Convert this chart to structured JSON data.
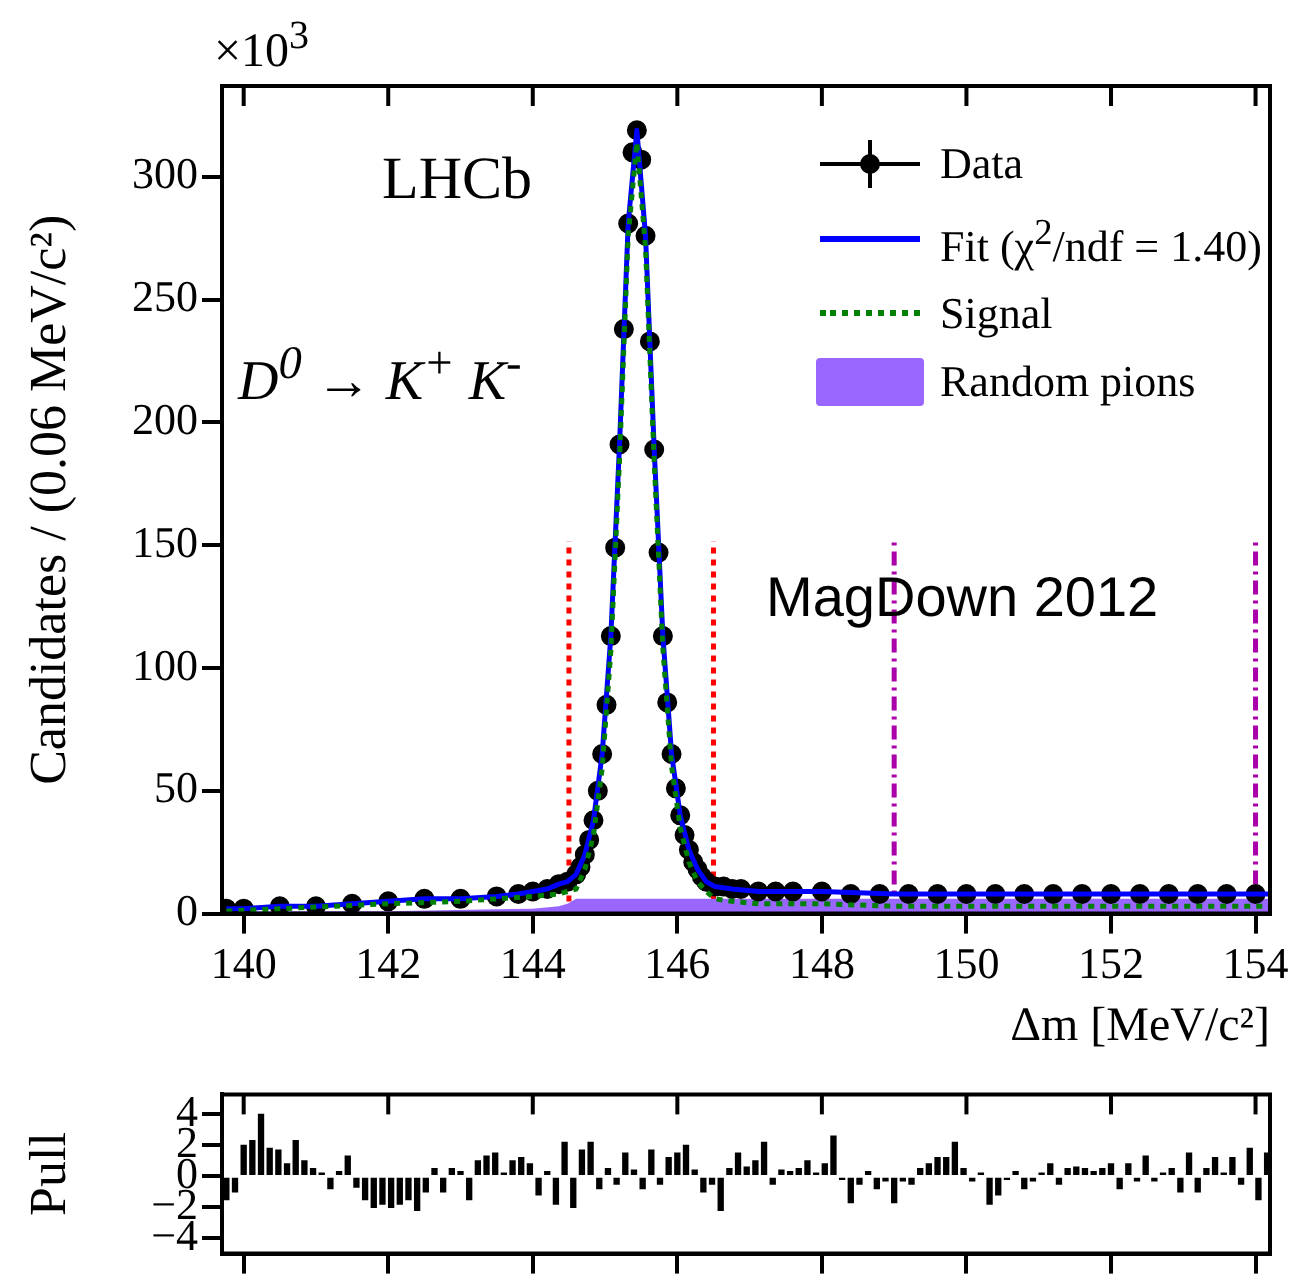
{
  "chart_data": [
    {
      "type": "line",
      "xlabel": "Δm [MeV/c²]",
      "ylabel": "Candidates / (0.06 MeV/c²)",
      "xlim": [
        139.7,
        154.2
      ],
      "xticks": [
        140,
        142,
        144,
        146,
        148,
        150,
        152,
        154
      ],
      "ylim": [
        0,
        337
      ],
      "yticks": [
        0,
        50,
        100,
        150,
        200,
        250,
        300
      ],
      "grid": false,
      "legend": "top right",
      "annotations": [
        "×10$^{3}$",
        "LHCb",
        "D$^{0}$ → K$^{+}$ K$^{-}$",
        "MagDown 2012"
      ],
      "ref_lines": [
        {
          "axis": "x",
          "value": 144.5,
          "color": "#ff0000",
          "line_style": "dotted"
        },
        {
          "axis": "x",
          "value": 146.5,
          "color": "#ff0000",
          "line_style": "dotted"
        },
        {
          "axis": "x",
          "value": 149,
          "color": "#aa00aa",
          "line_style": "dashed"
        },
        {
          "axis": "x",
          "value": 154,
          "color": "#aa00aa",
          "line_style": "dashed"
        }
      ],
      "series": [
        {
          "name": "Random pions",
          "type": "area",
          "color": "#9966ff",
          "x": [
            139.76,
            142,
            144,
            144.36,
            144.48,
            144.6,
            146,
            154.2
          ],
          "values": [
            1,
            1,
            2,
            3,
            4,
            6,
            6,
            6
          ]
        },
        {
          "name": "Data",
          "type": "scatter",
          "marker": "circle",
          "color": "#000000",
          "x": [
            139.76,
            140,
            140.5,
            141,
            141.5,
            142,
            142.5,
            143,
            143.5,
            143.8,
            144,
            144.2,
            144.36,
            144.48,
            144.6,
            144.66,
            144.72,
            144.78,
            144.84,
            144.9,
            144.96,
            145.02,
            145.08,
            145.14,
            145.2,
            145.26,
            145.32,
            145.38,
            145.44,
            145.5,
            145.56,
            145.62,
            145.68,
            145.74,
            145.8,
            145.86,
            145.92,
            145.98,
            146.04,
            146.1,
            146.16,
            146.22,
            146.28,
            146.34,
            146.4,
            146.52,
            146.64,
            146.76,
            146.88,
            147.12,
            147.36,
            147.6,
            148,
            148.4,
            148.8,
            149.2,
            149.6,
            150,
            150.4,
            150.8,
            151.2,
            151.6,
            152,
            152.4,
            152.8,
            153.2,
            153.6,
            154
          ],
          "values": [
            2,
            2,
            3,
            3,
            4,
            5,
            6,
            6,
            7,
            8,
            9,
            10,
            12,
            13,
            16,
            19,
            24,
            30,
            38,
            50,
            65,
            85,
            113,
            149,
            191,
            238,
            281,
            310,
            319,
            307,
            276,
            233,
            189,
            147,
            113,
            86,
            65,
            51,
            40,
            32,
            26,
            21,
            18,
            15,
            13,
            11,
            11,
            10,
            10,
            9,
            9,
            9,
            9,
            8,
            8,
            8,
            8,
            8,
            8,
            8,
            8,
            8,
            8,
            8,
            8,
            8,
            8,
            8
          ]
        },
        {
          "name": "Signal",
          "type": "line",
          "line_style": "dotted",
          "color": "#008000",
          "x": [
            139.76,
            142,
            143,
            144,
            144.36,
            144.48,
            144.6,
            144.72,
            144.84,
            144.96,
            145.08,
            145.2,
            145.32,
            145.44,
            145.56,
            145.68,
            145.8,
            145.92,
            146.04,
            146.16,
            146.28,
            146.4,
            146.52,
            146.76,
            147.12,
            147.6,
            148,
            149,
            150,
            154.2
          ],
          "values": [
            1,
            4,
            5,
            7,
            8,
            9,
            10,
            18,
            32,
            59,
            107,
            185,
            276,
            314,
            271,
            184,
            108,
            60,
            35,
            21,
            13,
            9,
            6,
            5,
            4,
            4,
            4,
            3,
            3,
            3
          ]
        },
        {
          "name": "Fit (χ$^{2}$/ndf = 1.40)",
          "type": "line",
          "line_style": "solid",
          "color": "#0000ff",
          "x": [
            139.76,
            140,
            140.5,
            141,
            141.5,
            142,
            142.5,
            143,
            143.5,
            143.8,
            144,
            144.2,
            144.36,
            144.48,
            144.6,
            144.72,
            144.84,
            144.96,
            145.08,
            145.2,
            145.32,
            145.44,
            145.56,
            145.68,
            145.8,
            145.92,
            146.04,
            146.16,
            146.28,
            146.4,
            146.52,
            146.76,
            147.12,
            147.6,
            148,
            149,
            150,
            152,
            154.2
          ],
          "values": [
            2,
            2,
            3,
            3,
            4,
            5,
            6,
            6,
            7,
            8,
            9,
            10,
            12,
            13,
            16,
            24,
            38,
            65,
            113,
            191,
            281,
            319,
            276,
            189,
            113,
            65,
            40,
            26,
            18,
            13,
            11,
            10,
            9,
            9,
            9,
            8,
            8,
            8,
            8
          ]
        }
      ]
    },
    {
      "type": "bar",
      "ylabel": "Pull",
      "color": "#000000",
      "tick_labels": "y",
      "grid": false,
      "xlim": [
        139.7,
        154.2
      ],
      "xticks": [
        140,
        142,
        144,
        146,
        148,
        150,
        152,
        154
      ],
      "ylim": [
        -5,
        5.3
      ],
      "yticks": [
        -4,
        -2,
        0,
        2,
        4
      ],
      "x": [
        139.76,
        139.88,
        140.0,
        140.12,
        140.24,
        140.36,
        140.48,
        140.6,
        140.72,
        140.84,
        140.96,
        141.08,
        141.2,
        141.32,
        141.44,
        141.56,
        141.68,
        141.8,
        141.92,
        142.04,
        142.16,
        142.28,
        142.4,
        142.52,
        142.64,
        142.76,
        142.88,
        143.0,
        143.12,
        143.24,
        143.36,
        143.48,
        143.6,
        143.72,
        143.84,
        143.96,
        144.08,
        144.2,
        144.32,
        144.44,
        144.56,
        144.68,
        144.8,
        144.92,
        145.04,
        145.16,
        145.28,
        145.4,
        145.52,
        145.64,
        145.76,
        145.88,
        146.0,
        146.12,
        146.24,
        146.36,
        146.48,
        146.6,
        146.72,
        146.84,
        146.96,
        147.08,
        147.2,
        147.32,
        147.44,
        147.56,
        147.68,
        147.8,
        147.92,
        148.04,
        148.16,
        148.28,
        148.4,
        148.52,
        148.64,
        148.76,
        148.88,
        149.0,
        149.12,
        149.24,
        149.36,
        149.48,
        149.6,
        149.72,
        149.84,
        149.96,
        150.08,
        150.2,
        150.32,
        150.44,
        150.56,
        150.68,
        150.8,
        150.92,
        151.04,
        151.16,
        151.28,
        151.4,
        151.52,
        151.64,
        151.76,
        151.88,
        152.0,
        152.12,
        152.24,
        152.36,
        152.48,
        152.6,
        152.72,
        152.84,
        152.96,
        153.08,
        153.2,
        153.32,
        153.44,
        153.56,
        153.68,
        153.8,
        153.92,
        154.04,
        154.16
      ],
      "values": [
        -1.5,
        -1,
        2,
        2.3,
        4,
        1.8,
        1.7,
        0.8,
        2.3,
        1,
        0.5,
        0.2,
        -0.8,
        0.3,
        1.3,
        -0.7,
        -1.5,
        -2,
        -1.8,
        -2,
        -1.8,
        -1.5,
        -2.2,
        -1,
        0.5,
        -1,
        0.5,
        0.3,
        -1.5,
        1,
        1.3,
        1.5,
        0.2,
        1,
        1.2,
        0.8,
        -1.2,
        0.3,
        -1.8,
        2.2,
        -2,
        1.7,
        2.2,
        -0.8,
        0.5,
        -0.5,
        1.5,
        0.4,
        -0.8,
        1.7,
        -0.5,
        1.2,
        1.5,
        2,
        0.4,
        -1,
        -0.5,
        -2.2,
        0.5,
        1.5,
        0.6,
        1,
        2.2,
        -0.5,
        0.4,
        0.3,
        0.5,
        1,
        0.2,
        0.8,
        2.6,
        -0.2,
        -1.7,
        -0.5,
        0.3,
        -0.8,
        -0.3,
        -1.7,
        -0.3,
        -0.5,
        0.5,
        0.8,
        1.2,
        1.2,
        2.2,
        0.5,
        -0.3,
        0.2,
        -1.8,
        -1.2,
        -0.2,
        0.3,
        -0.8,
        -0.3,
        0.2,
        0.8,
        -0.5,
        0.5,
        0.6,
        0.5,
        0.3,
        0.5,
        0.8,
        -0.8,
        0.8,
        -0.3,
        1.3,
        -0.3,
        0.2,
        0.5,
        -1,
        1.5,
        -1,
        0.5,
        1.2,
        0.2,
        1.2,
        -0.5,
        1.8,
        -1.5,
        1.5
      ]
    }
  ]
}
